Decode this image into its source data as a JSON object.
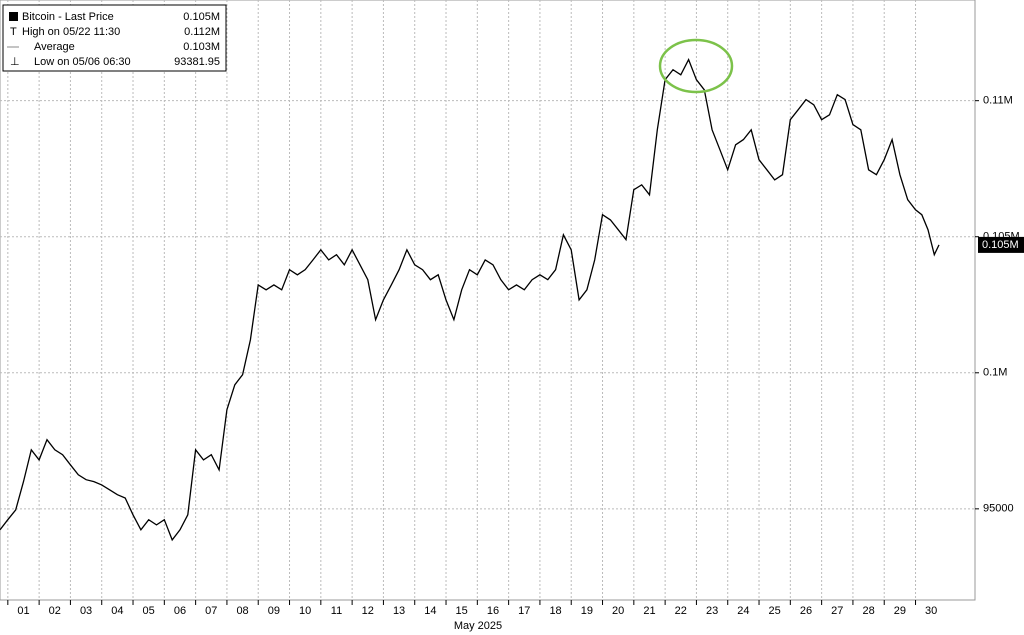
{
  "chart_data": {
    "type": "line",
    "x_label": "May 2025",
    "legend": [
      {
        "label": "Bitcoin - Last Price",
        "value": "0.105M"
      },
      {
        "label": "High on 05/22 11:30",
        "value": "0.112M"
      },
      {
        "label": "Average",
        "value": "0.103M"
      },
      {
        "label": "Low on 05/06 06:30",
        "value": "93381.95"
      }
    ],
    "x": [
      0.75,
      1,
      1.25,
      1.5,
      1.75,
      2,
      2.25,
      2.5,
      2.75,
      3,
      3.25,
      3.5,
      3.75,
      4,
      4.25,
      4.5,
      4.75,
      5,
      5.25,
      5.5,
      5.75,
      6,
      6.25,
      6.5,
      6.75,
      7,
      7.25,
      7.5,
      7.75,
      8,
      8.25,
      8.5,
      8.75,
      9,
      9.25,
      9.5,
      9.75,
      10,
      10.25,
      10.5,
      10.75,
      11,
      11.25,
      11.5,
      11.75,
      12,
      12.25,
      12.5,
      12.75,
      13,
      13.25,
      13.5,
      13.75,
      14,
      14.25,
      14.5,
      14.75,
      15,
      15.25,
      15.5,
      15.75,
      16,
      16.25,
      16.5,
      16.75,
      17,
      17.25,
      17.5,
      17.75,
      18,
      18.25,
      18.5,
      18.75,
      19,
      19.25,
      19.5,
      19.75,
      20,
      20.25,
      20.5,
      20.75,
      21,
      21.25,
      21.5,
      21.75,
      22,
      22.25,
      22.5,
      22.75,
      23,
      23.25,
      23.5,
      23.75,
      24,
      24.25,
      24.5,
      24.75,
      25,
      25.25,
      25.5,
      25.75,
      26,
      26.25,
      26.5,
      26.75,
      27,
      27.25,
      27.5,
      27.75,
      28,
      28.25,
      28.5,
      28.75,
      29,
      29.25,
      29.5,
      29.75,
      30,
      30.2,
      30.4,
      30.6,
      30.75
    ],
    "series": [
      {
        "name": "Bitcoin - Last Price",
        "color": "#000000",
        "values": [
          94230,
          94600,
          94960,
          96000,
          97170,
          96800,
          97540,
          97170,
          96990,
          96620,
          96250,
          96070,
          96000,
          95880,
          95700,
          95520,
          95400,
          94780,
          94230,
          94600,
          94410,
          94600,
          93860,
          94230,
          94780,
          97170,
          96800,
          96990,
          96430,
          98640,
          99560,
          99930,
          101210,
          103230,
          103050,
          103230,
          103050,
          103790,
          103600,
          103790,
          104150,
          104520,
          104150,
          104340,
          103970,
          104520,
          103970,
          103420,
          101950,
          102680,
          103230,
          103790,
          104520,
          103970,
          103790,
          103420,
          103600,
          102680,
          101950,
          103050,
          103790,
          103600,
          104150,
          103970,
          103420,
          103050,
          103230,
          103050,
          103420,
          103600,
          103420,
          103790,
          105070,
          104520,
          102680,
          103050,
          104150,
          105810,
          105620,
          105260,
          104890,
          106730,
          106910,
          106540,
          108930,
          110770,
          111140,
          110950,
          111510,
          110770,
          110400,
          108930,
          108200,
          107460,
          108380,
          108570,
          108930,
          107830,
          107460,
          107090,
          107280,
          109300,
          109670,
          110040,
          109850,
          109300,
          109480,
          110220,
          110040,
          109120,
          108930,
          107460,
          107280,
          107830,
          108570,
          107280,
          106360,
          105990,
          105810,
          105260,
          104340,
          104700
        ]
      }
    ],
    "xlim": [
      0.75,
      31.9
    ],
    "xticks": [
      {
        "value": 1,
        "label": "01"
      },
      {
        "value": 2,
        "label": "02"
      },
      {
        "value": 3,
        "label": "03"
      },
      {
        "value": 4,
        "label": "04"
      },
      {
        "value": 5,
        "label": "05"
      },
      {
        "value": 6,
        "label": "06"
      },
      {
        "value": 7,
        "label": "07"
      },
      {
        "value": 8,
        "label": "08"
      },
      {
        "value": 9,
        "label": "09"
      },
      {
        "value": 10,
        "label": "10"
      },
      {
        "value": 11,
        "label": "11"
      },
      {
        "value": 12,
        "label": "12"
      },
      {
        "value": 13,
        "label": "13"
      },
      {
        "value": 14,
        "label": "14"
      },
      {
        "value": 15,
        "label": "15"
      },
      {
        "value": 16,
        "label": "16"
      },
      {
        "value": 17,
        "label": "17"
      },
      {
        "value": 18,
        "label": "18"
      },
      {
        "value": 19,
        "label": "19"
      },
      {
        "value": 20,
        "label": "20"
      },
      {
        "value": 21,
        "label": "21"
      },
      {
        "value": 22,
        "label": "22"
      },
      {
        "value": 23,
        "label": "23"
      },
      {
        "value": 24,
        "label": "24"
      },
      {
        "value": 25,
        "label": "25"
      },
      {
        "value": 26,
        "label": "26"
      },
      {
        "value": 27,
        "label": "27"
      },
      {
        "value": 28,
        "label": "28"
      },
      {
        "value": 29,
        "label": "29"
      },
      {
        "value": 30,
        "label": "30"
      }
    ],
    "ylim": [
      91650,
      113700
    ],
    "yticks": [
      95000,
      {
        "value": 100000,
        "label": "0.1M"
      },
      {
        "value": 105000,
        "label": "0.105M"
      },
      {
        "value": 110000,
        "label": "0.11M"
      }
    ],
    "grid": true
  }
}
